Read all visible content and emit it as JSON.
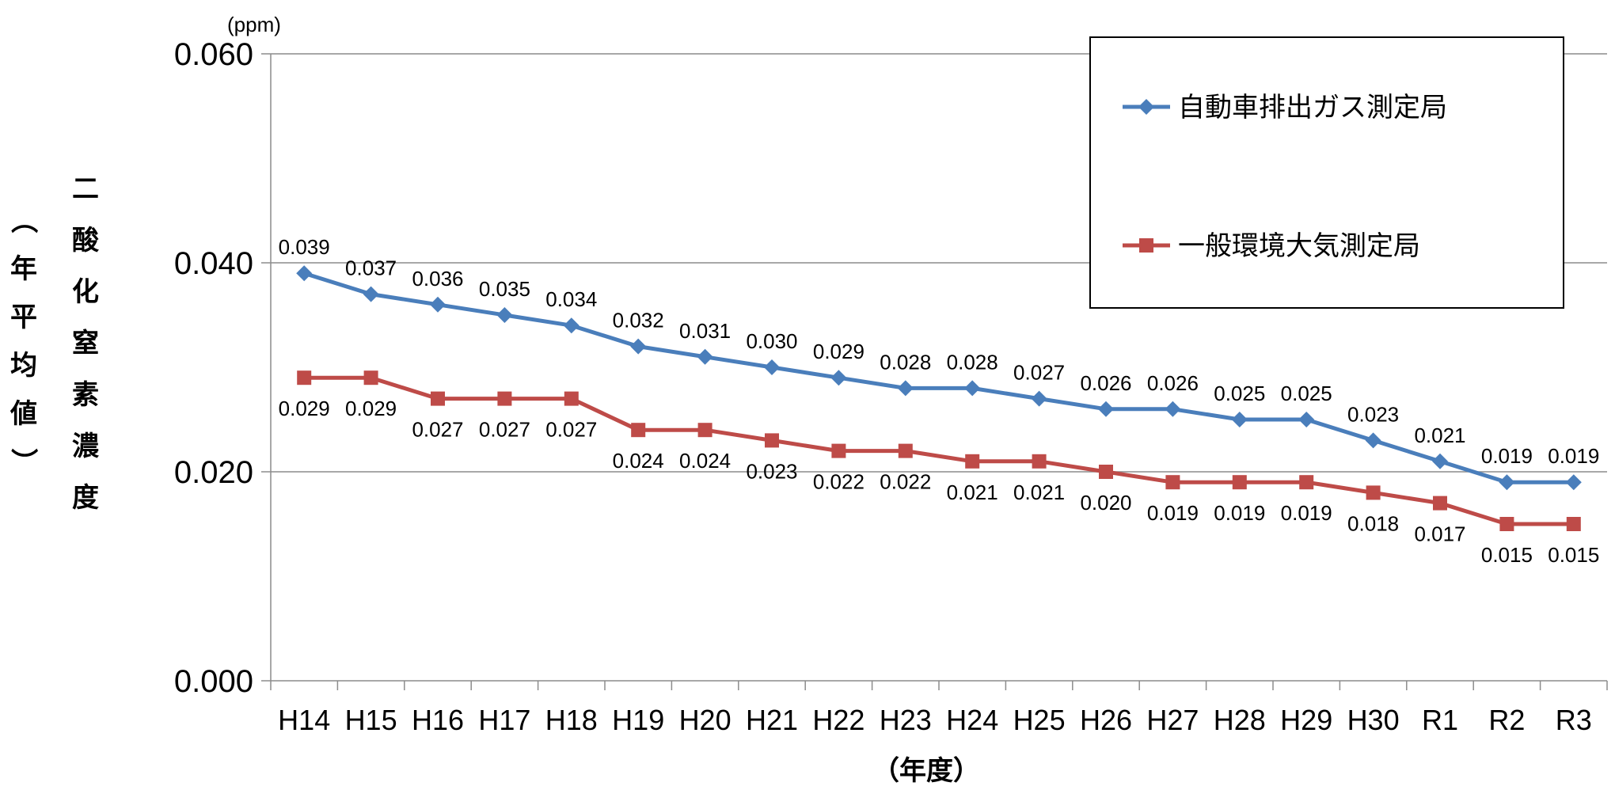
{
  "chart_data": {
    "type": "line",
    "unit": "(ppm)",
    "ylabel_main": "二酸化窒素濃度",
    "ylabel_sub": "（年平均値）",
    "xlabel": "（年度）",
    "ylim": [
      0,
      0.06
    ],
    "yticks": [
      "0.000",
      "0.020",
      "0.040",
      "0.060"
    ],
    "grid": true,
    "legend_position": "top-right",
    "categories": [
      "H14",
      "H15",
      "H16",
      "H17",
      "H18",
      "H19",
      "H20",
      "H21",
      "H22",
      "H23",
      "H24",
      "H25",
      "H26",
      "H27",
      "H28",
      "H29",
      "H30",
      "R1",
      "R2",
      "R3"
    ],
    "series": [
      {
        "name": "自動車排出ガス測定局",
        "color": "#4a7ebb",
        "marker": "diamond",
        "values": [
          0.039,
          0.037,
          0.036,
          0.035,
          0.034,
          0.032,
          0.031,
          0.03,
          0.029,
          0.028,
          0.028,
          0.027,
          0.026,
          0.026,
          0.025,
          0.025,
          0.023,
          0.021,
          0.019,
          0.019
        ],
        "labels": [
          "0.039",
          "0.037",
          "0.036",
          "0.035",
          "0.034",
          "0.032",
          "0.031",
          "0.030",
          "0.029",
          "0.028",
          "0.028",
          "0.027",
          "0.026",
          "0.026",
          "0.025",
          "0.025",
          "0.023",
          "0.021",
          "0.019",
          "0.019"
        ]
      },
      {
        "name": "一般環境大気測定局",
        "color": "#be4b48",
        "marker": "square",
        "values": [
          0.029,
          0.029,
          0.027,
          0.027,
          0.027,
          0.024,
          0.024,
          0.023,
          0.022,
          0.022,
          0.021,
          0.021,
          0.02,
          0.019,
          0.019,
          0.019,
          0.018,
          0.017,
          0.015,
          0.015
        ],
        "labels": [
          "0.029",
          "0.029",
          "0.027",
          "0.027",
          "0.027",
          "0.024",
          "0.024",
          "0.023",
          "0.022",
          "0.022",
          "0.021",
          "0.021",
          "0.020",
          "0.019",
          "0.019",
          "0.019",
          "0.018",
          "0.017",
          "0.015",
          "0.015"
        ]
      }
    ]
  }
}
